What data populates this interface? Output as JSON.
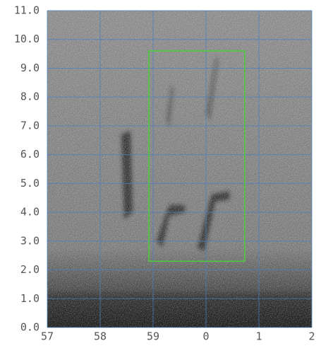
{
  "chart_data": {
    "type": "spectrogram",
    "xlim": [
      57,
      62
    ],
    "xticks": [
      57,
      58,
      59,
      {
        "value": 60,
        "label": "0"
      },
      {
        "value": 61,
        "label": "1"
      },
      {
        "value": 62,
        "label": "2"
      }
    ],
    "ylim": [
      0,
      11
    ],
    "yticks": [
      {
        "value": 0,
        "label": "0.0"
      },
      {
        "value": 1,
        "label": "1.0"
      },
      {
        "value": 2,
        "label": "2.0"
      },
      {
        "value": 3,
        "label": "3.0"
      },
      {
        "value": 4,
        "label": "4.0"
      },
      {
        "value": 5,
        "label": "5.0"
      },
      {
        "value": 6,
        "label": "6.0"
      },
      {
        "value": 7,
        "label": "7.0"
      },
      {
        "value": 8,
        "label": "8.0"
      },
      {
        "value": 9,
        "label": "9.0"
      },
      {
        "value": 10,
        "label": "10.0"
      },
      {
        "value": 11,
        "label": "11.0"
      }
    ],
    "grid": true,
    "grid_color": "#4a7fc0",
    "selection": {
      "x": [
        58.92,
        60.73
      ],
      "y": [
        2.3,
        9.6
      ],
      "color": "#4ccc3c"
    }
  }
}
